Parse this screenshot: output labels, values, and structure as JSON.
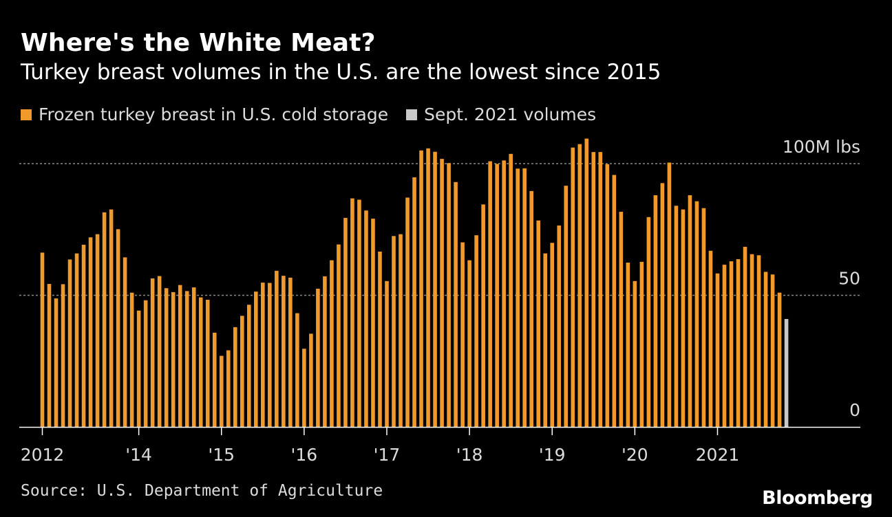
{
  "title": "Where's the White Meat?",
  "subtitle": "Turkey breast volumes in the U.S. are the lowest since 2015",
  "source": "Source: U.S. Department of Agriculture",
  "brand": "Bloomberg",
  "colors": {
    "background": "#000000",
    "primary": "#f09a2c",
    "highlight": "#c8c8c8",
    "gridline": "#8a8a8a",
    "text": "#dcdcdc"
  },
  "chart_data": {
    "type": "bar",
    "legend": [
      {
        "name": "Frozen turkey breast in U.S. cold storage",
        "color": "#f09a2c"
      },
      {
        "name": "Sept. 2021 volumes",
        "color": "#c8c8c8"
      }
    ],
    "ylim": [
      0,
      100
    ],
    "yticks": [
      0,
      50,
      100
    ],
    "ytick_labels": [
      "0",
      "50",
      "100M lbs"
    ],
    "grid": true,
    "x_tick_labels": [
      {
        "label": "2012",
        "index": 0
      },
      {
        "label": "'14",
        "index": 14
      },
      {
        "label": "'15",
        "index": 26
      },
      {
        "label": "'16",
        "index": 38
      },
      {
        "label": "'17",
        "index": 50
      },
      {
        "label": "'18",
        "index": 62
      },
      {
        "label": "'19",
        "index": 74
      },
      {
        "label": "'20",
        "index": 86
      },
      {
        "label": "2021",
        "index": 98
      }
    ],
    "series": [
      {
        "name": "Frozen turkey breast in U.S. cold storage",
        "color": "#f09a2c",
        "values": [
          66.2,
          54.3,
          48.8,
          54.2,
          63.6,
          65.9,
          69.2,
          72.0,
          73.2,
          81.5,
          82.6,
          75.1,
          64.4,
          51.0,
          44.2,
          48.1,
          56.4,
          57.3,
          52.7,
          51.2,
          53.9,
          51.6,
          53.0,
          49.2,
          48.3,
          35.8,
          27.0,
          29.1,
          37.9,
          42.2,
          46.4,
          51.4,
          54.8,
          54.7,
          59.3,
          57.4,
          56.7,
          43.2,
          29.7,
          35.4,
          52.5,
          57.2,
          63.3,
          69.3,
          79.4,
          86.8,
          86.3,
          82.2,
          79.1,
          66.6,
          55.4,
          72.5,
          73.2,
          87.1,
          94.8,
          105.0,
          105.8,
          104.5,
          101.8,
          100.2,
          93.0,
          70.1,
          63.3,
          72.8,
          84.5,
          100.9,
          99.9,
          101.2,
          103.7,
          98.1,
          98.2,
          89.6,
          78.4,
          65.9,
          69.9,
          76.5,
          91.6,
          106.1,
          107.4,
          109.5,
          104.4,
          104.4,
          99.8,
          95.7,
          81.7,
          62.4,
          55.4,
          62.7,
          79.7,
          88.0,
          92.6,
          100.4,
          84.0,
          82.6,
          88.0,
          85.7,
          83.1,
          66.9,
          58.3,
          61.6,
          62.9,
          63.7,
          68.4,
          65.6,
          65.2,
          58.9,
          57.9,
          51.0
        ]
      },
      {
        "name": "Sept. 2021 volumes",
        "color": "#c8c8c8",
        "values": [
          41.0
        ]
      }
    ]
  }
}
